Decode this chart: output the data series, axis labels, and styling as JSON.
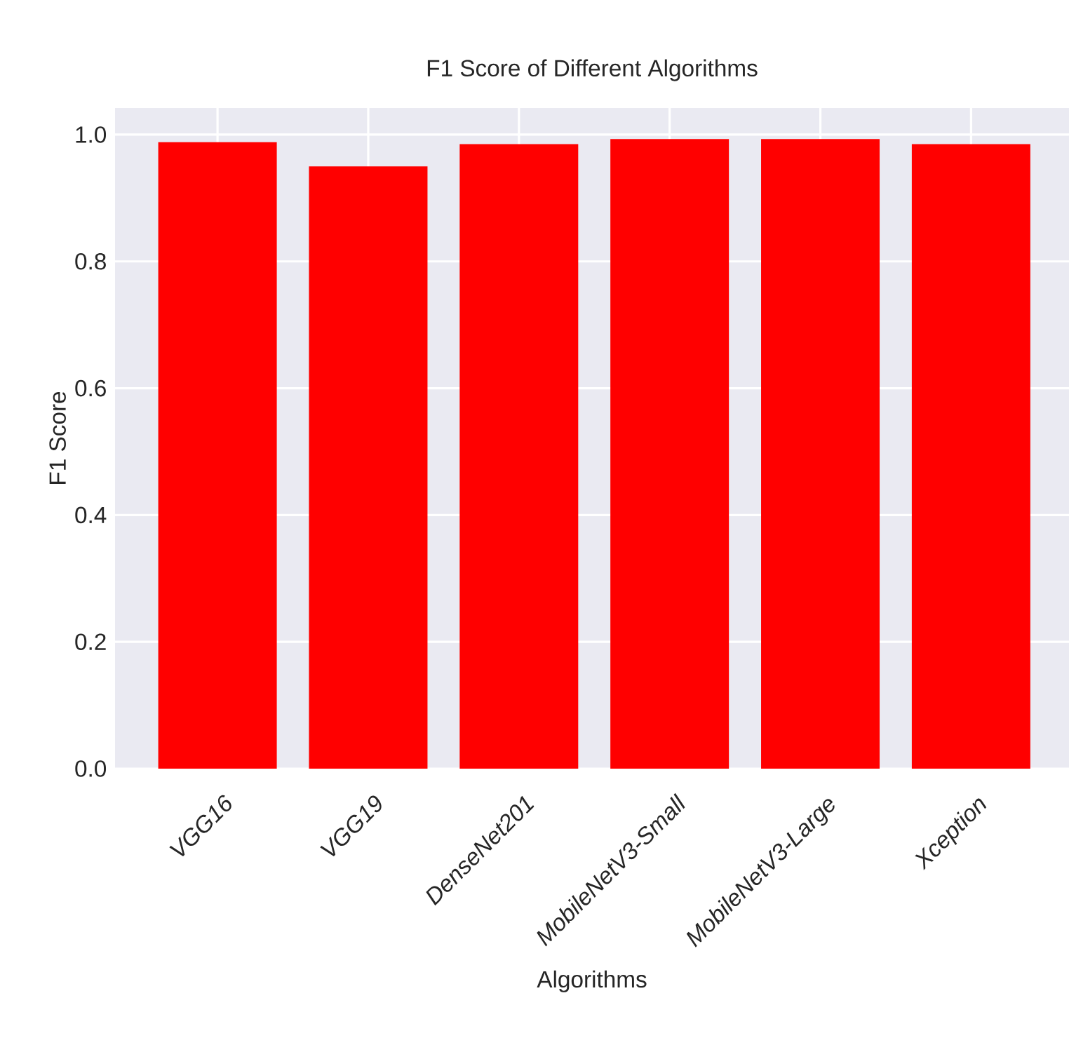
{
  "chart_data": {
    "type": "bar",
    "title": "F1 Score of Different Algorithms",
    "xlabel": "Algorithms",
    "ylabel": "F1 Score",
    "categories": [
      "VGG16",
      "VGG19",
      "DenseNet201",
      "MobileNetV3-Small",
      "MobileNetV3-Large",
      "Xception"
    ],
    "values": [
      0.988,
      0.95,
      0.985,
      0.993,
      0.993,
      0.985
    ],
    "color": "#ff0000",
    "ylim": [
      0,
      1.042
    ],
    "yticks": [
      {
        "value": 0,
        "label": "0.0"
      },
      0.2,
      0.4,
      0.6,
      0.8,
      {
        "value": 1,
        "label": "1.0"
      }
    ],
    "grid": true
  }
}
